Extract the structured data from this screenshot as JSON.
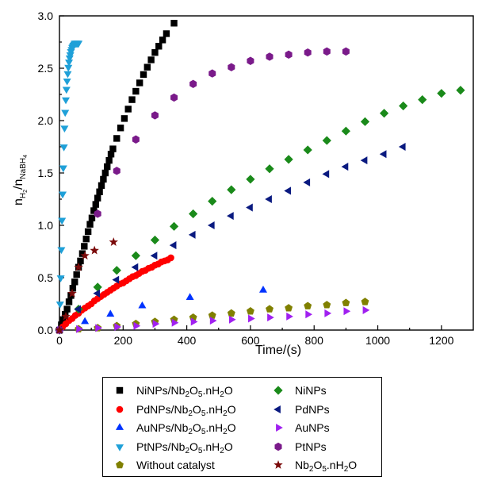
{
  "chart_data": {
    "type": "scatter",
    "title": "",
    "xlabel": "Time/(s)",
    "ylabel": "n_H2/n_NaBH4",
    "xlim": [
      0,
      1300
    ],
    "ylim": [
      0,
      3.0
    ],
    "xticks": [
      0,
      200,
      400,
      600,
      800,
      1000,
      1200
    ],
    "yticks": [
      0.0,
      0.5,
      1.0,
      1.5,
      2.0,
      2.5,
      3.0
    ],
    "xtick_labels": [
      "0",
      "200",
      "400",
      "600",
      "800",
      "1000",
      "1200"
    ],
    "ytick_labels": [
      "0.0",
      "0.5",
      "1.0",
      "1.5",
      "2.0",
      "2.5",
      "3.0"
    ],
    "grid": false,
    "legend_position": "bottom",
    "series": [
      {
        "name": "NiNPs/Nb2O5.nH2O",
        "label": {
          "a": "NiNPs/Nb",
          "b": "2",
          "c": "O",
          "d": "5",
          "e": ".nH",
          "f": "2",
          "g": "O"
        },
        "marker": "square",
        "color": "#000000",
        "x": [
          0,
          6,
          12,
          18,
          24,
          30,
          36,
          42,
          48,
          54,
          60,
          66,
          72,
          78,
          84,
          90,
          96,
          102,
          108,
          114,
          120,
          126,
          132,
          138,
          144,
          150,
          156,
          162,
          168,
          180,
          192,
          204,
          216,
          228,
          240,
          252,
          264,
          276,
          288,
          300,
          312,
          324,
          336,
          360
        ],
        "y": [
          0.0,
          0.05,
          0.1,
          0.15,
          0.2,
          0.27,
          0.33,
          0.4,
          0.46,
          0.53,
          0.6,
          0.66,
          0.73,
          0.8,
          0.87,
          0.94,
          1.01,
          1.07,
          1.14,
          1.2,
          1.26,
          1.32,
          1.38,
          1.44,
          1.5,
          1.56,
          1.62,
          1.68,
          1.73,
          1.83,
          1.93,
          2.02,
          2.11,
          2.2,
          2.28,
          2.36,
          2.44,
          2.51,
          2.58,
          2.65,
          2.71,
          2.77,
          2.83,
          2.93
        ]
      },
      {
        "name": "PdNPs/Nb2O5.nH2O",
        "label": {
          "a": "PdNPs/Nb",
          "b": "2",
          "c": "O",
          "d": "5",
          "e": ".nH",
          "f": "2",
          "g": "O"
        },
        "marker": "circle",
        "color": "#ff0000",
        "x": [
          0,
          10,
          20,
          30,
          40,
          50,
          60,
          70,
          80,
          90,
          100,
          110,
          120,
          130,
          140,
          150,
          160,
          170,
          180,
          190,
          200,
          210,
          220,
          230,
          240,
          250,
          260,
          270,
          280,
          290,
          300,
          310,
          320,
          330,
          340,
          350
        ],
        "y": [
          0.0,
          0.03,
          0.06,
          0.09,
          0.11,
          0.14,
          0.16,
          0.19,
          0.21,
          0.23,
          0.25,
          0.28,
          0.3,
          0.32,
          0.34,
          0.36,
          0.38,
          0.4,
          0.42,
          0.44,
          0.45,
          0.47,
          0.49,
          0.51,
          0.52,
          0.54,
          0.56,
          0.57,
          0.59,
          0.6,
          0.62,
          0.63,
          0.65,
          0.66,
          0.67,
          0.69
        ]
      },
      {
        "name": "AuNPs/Nb2O5.nH2O",
        "label": {
          "a": "AuNPs/Nb",
          "b": "2",
          "c": "O",
          "d": "5",
          "e": ".nH",
          "f": "2",
          "g": "O"
        },
        "marker": "triangle-up",
        "color": "#0033ff",
        "x": [
          0,
          80,
          160,
          260,
          410,
          640
        ],
        "y": [
          0.0,
          0.08,
          0.15,
          0.23,
          0.31,
          0.38
        ]
      },
      {
        "name": "PtNPs/Nb2O5.nH2O",
        "label": {
          "a": "PtNPs/Nb",
          "b": "2",
          "c": "O",
          "d": "5",
          "e": ".nH",
          "f": "2",
          "g": "O"
        },
        "marker": "triangle-down",
        "color": "#1fa0d8",
        "x": [
          0,
          2,
          4,
          6,
          8,
          10,
          12,
          14,
          16,
          18,
          20,
          22,
          24,
          26,
          28,
          30,
          32,
          34,
          36,
          38,
          40,
          42,
          44,
          46,
          48,
          50,
          52,
          54,
          56,
          58,
          60
        ],
        "y": [
          0.0,
          0.25,
          0.5,
          0.77,
          1.05,
          1.3,
          1.55,
          1.75,
          1.93,
          2.08,
          2.2,
          2.3,
          2.38,
          2.45,
          2.51,
          2.56,
          2.6,
          2.63,
          2.66,
          2.68,
          2.7,
          2.71,
          2.72,
          2.73,
          2.74,
          2.74,
          2.74,
          2.74,
          2.74,
          2.74,
          2.74
        ]
      },
      {
        "name": "Without catalyst",
        "label": {
          "a": "Without catalyst"
        },
        "marker": "pentagon",
        "color": "#808000",
        "x": [
          0,
          60,
          120,
          180,
          240,
          300,
          360,
          420,
          480,
          540,
          600,
          660,
          720,
          780,
          840,
          900,
          960
        ],
        "y": [
          0.0,
          0.01,
          0.02,
          0.04,
          0.06,
          0.08,
          0.1,
          0.12,
          0.14,
          0.16,
          0.18,
          0.2,
          0.21,
          0.23,
          0.24,
          0.26,
          0.27
        ]
      },
      {
        "name": "NiNPs",
        "label": {
          "a": "NiNPs"
        },
        "marker": "diamond",
        "color": "#1a8a1a",
        "x": [
          0,
          60,
          120,
          180,
          240,
          300,
          360,
          420,
          480,
          540,
          600,
          660,
          720,
          780,
          840,
          900,
          960,
          1020,
          1080,
          1140,
          1200,
          1260
        ],
        "y": [
          0.0,
          0.2,
          0.41,
          0.57,
          0.71,
          0.86,
          0.99,
          1.11,
          1.23,
          1.34,
          1.44,
          1.54,
          1.63,
          1.72,
          1.81,
          1.9,
          1.99,
          2.07,
          2.14,
          2.2,
          2.26,
          2.29
        ]
      },
      {
        "name": "PdNPs",
        "label": {
          "a": "PdNPs"
        },
        "marker": "triangle-left",
        "color": "#0a1a80",
        "x": [
          0,
          60,
          120,
          180,
          240,
          300,
          360,
          420,
          480,
          540,
          600,
          660,
          720,
          780,
          840,
          900,
          960,
          1020,
          1080
        ],
        "y": [
          0.0,
          0.2,
          0.35,
          0.48,
          0.6,
          0.71,
          0.81,
          0.91,
          1.0,
          1.09,
          1.17,
          1.25,
          1.33,
          1.41,
          1.49,
          1.56,
          1.62,
          1.68,
          1.75
        ]
      },
      {
        "name": "AuNPs",
        "label": {
          "a": "AuNPs"
        },
        "marker": "triangle-right",
        "color": "#a020f0",
        "x": [
          0,
          60,
          120,
          180,
          240,
          300,
          360,
          420,
          480,
          540,
          600,
          660,
          720,
          780,
          840,
          900,
          960
        ],
        "y": [
          0.0,
          0.01,
          0.02,
          0.03,
          0.04,
          0.06,
          0.07,
          0.08,
          0.09,
          0.1,
          0.11,
          0.12,
          0.13,
          0.15,
          0.16,
          0.18,
          0.19
        ]
      },
      {
        "name": "PtNPs",
        "label": {
          "a": "PtNPs"
        },
        "marker": "hexagon",
        "color": "#7a1a8a",
        "x": [
          0,
          120,
          180,
          240,
          300,
          360,
          420,
          480,
          540,
          600,
          660,
          720,
          780,
          840,
          900
        ],
        "y": [
          0.0,
          1.11,
          1.52,
          1.82,
          2.05,
          2.22,
          2.35,
          2.45,
          2.51,
          2.57,
          2.61,
          2.63,
          2.65,
          2.66,
          2.66
        ]
      },
      {
        "name": "Nb2O5.nH2O",
        "label": {
          "a": "Nb",
          "b": "2",
          "c": "O",
          "d": "5",
          "e": ".nH",
          "f": "2",
          "g": "O"
        },
        "marker": "star",
        "color": "#7a0a0a",
        "x": [
          0,
          20,
          40,
          60,
          80,
          110,
          170
        ],
        "y": [
          0.0,
          0.13,
          0.35,
          0.6,
          0.71,
          0.76,
          0.84
        ]
      }
    ]
  },
  "legend_order": [
    0,
    5,
    1,
    6,
    2,
    7,
    3,
    8,
    4,
    9
  ]
}
